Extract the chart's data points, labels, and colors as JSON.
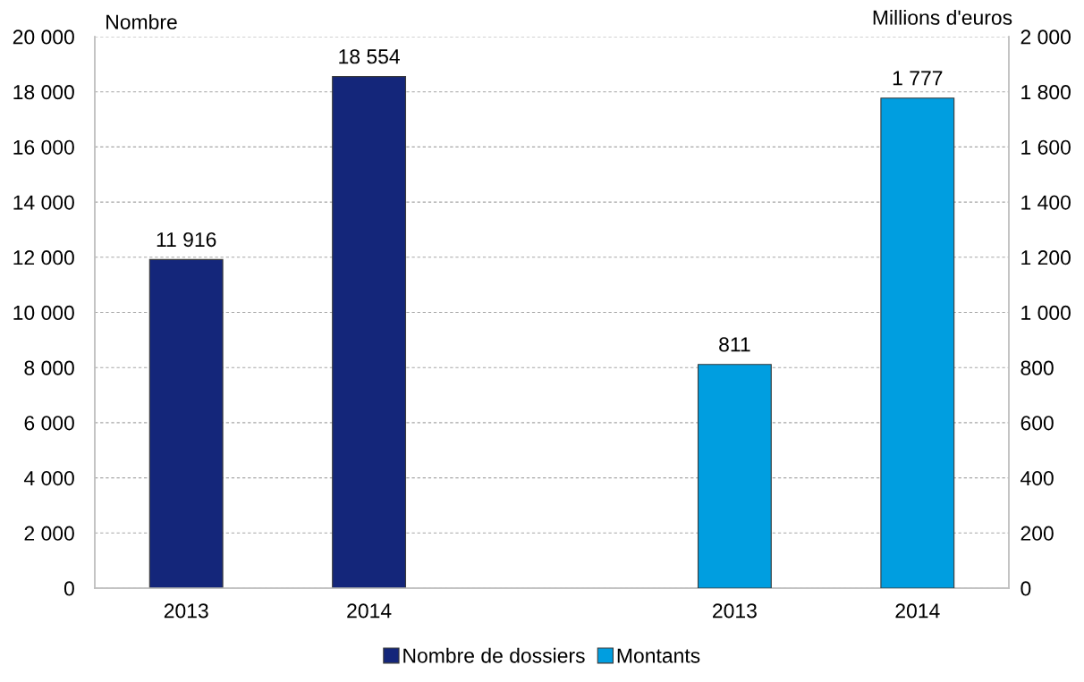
{
  "chart_data": {
    "type": "bar",
    "categories": [
      "2013",
      "2014",
      null,
      "2013",
      "2014"
    ],
    "series": [
      {
        "name": "Nombre de dossiers",
        "color": "#14267a",
        "values": [
          11916,
          18554,
          null,
          null,
          null
        ],
        "value_labels": [
          "11 916",
          "18 554",
          null,
          null,
          null
        ]
      },
      {
        "name": "Montants",
        "color": "#009ee0",
        "axis": "y2",
        "values": [
          null,
          null,
          null,
          811,
          1777
        ],
        "value_labels": [
          null,
          null,
          null,
          "811",
          "1 777"
        ]
      }
    ],
    "ylabel": "Nombre",
    "y2label": "Millions d'euros",
    "ylim": [
      0,
      20000
    ],
    "yticks": [
      0,
      {
        "value": 2000,
        "label": "2 000"
      },
      {
        "value": 4000,
        "label": "4 000"
      },
      {
        "value": 6000,
        "label": "6 000"
      },
      {
        "value": 8000,
        "label": "8 000"
      },
      {
        "value": 10000,
        "label": "10 000"
      },
      {
        "value": 12000,
        "label": "12 000"
      },
      {
        "value": 14000,
        "label": "14 000"
      },
      {
        "value": 16000,
        "label": "16 000"
      },
      {
        "value": 18000,
        "label": "18 000"
      },
      {
        "value": 20000,
        "label": "20 000"
      }
    ],
    "y2lim": [
      0,
      2000
    ],
    "y2ticks": [
      0,
      200,
      400,
      600,
      800,
      {
        "value": 1000,
        "label": "1 000"
      },
      {
        "value": 1200,
        "label": "1 200"
      },
      {
        "value": 1400,
        "label": "1 400"
      },
      {
        "value": 1600,
        "label": "1 600"
      },
      {
        "value": 1800,
        "label": "1 800"
      },
      {
        "value": 2000,
        "label": "2 000"
      }
    ],
    "grid": "y",
    "legend": "bottom"
  }
}
